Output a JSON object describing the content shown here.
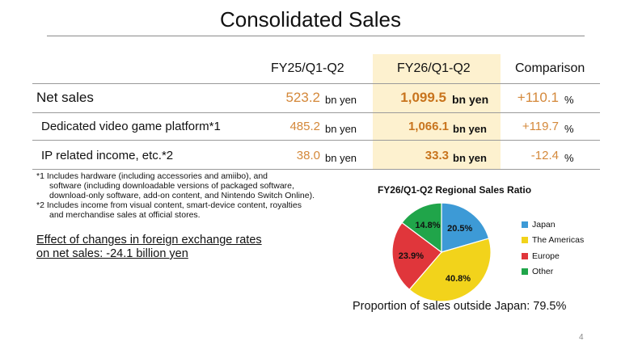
{
  "title": "Consolidated Sales",
  "table": {
    "headers": [
      "FY25/Q1-Q2",
      "FY26/Q1-Q2",
      "Comparison"
    ],
    "rows": [
      {
        "label": "Net sales",
        "fy25": "523.2",
        "fy25_unit": "bn yen",
        "fy26": "1,099.5",
        "fy26_unit": "bn yen",
        "comparison": "+110.1",
        "comparison_unit": "%"
      },
      {
        "label": "Dedicated video game platform*1",
        "fy25": "485.2",
        "fy25_unit": "bn yen",
        "fy26": "1,066.1",
        "fy26_unit": "bn yen",
        "comparison": "+119.7",
        "comparison_unit": "%"
      },
      {
        "label": "IP related income, etc.*2",
        "fy25": "38.0",
        "fy25_unit": "bn yen",
        "fy26": "33.3",
        "fy26_unit": "bn yen",
        "comparison": "-12.4",
        "comparison_unit": "%"
      }
    ]
  },
  "footnotes": [
    "*1 Includes hardware (including accessories and amiibo), and",
    "software (including downloadable versions of packaged software,",
    "download-only software, add-on content, and Nintendo Switch Online).",
    "*2 Includes income from visual content, smart-device content, royalties",
    "and merchandise sales at official stores."
  ],
  "fx_note": [
    "Effect of changes in foreign exchange rates",
    "on net sales: -24.1 billion yen"
  ],
  "proportion": "Proportion of sales outside Japan: 79.5%",
  "page_number": "4",
  "colors": {
    "japan": "#3d9ad6",
    "americas": "#f2d31b",
    "europe": "#e0363b",
    "other": "#20a54a",
    "highlight": "#fdf1cf",
    "value": "#d4883a"
  },
  "chart_data": {
    "type": "pie",
    "title": "FY26/Q1-Q2 Regional Sales Ratio",
    "labels": [
      "Japan",
      "The Americas",
      "Europe",
      "Other"
    ],
    "values": [
      20.5,
      40.8,
      23.9,
      14.8
    ],
    "value_labels": [
      "20.5%",
      "40.8%",
      "23.9%",
      "14.8%"
    ],
    "start": "12 o'clock, clockwise",
    "legend": "right"
  }
}
